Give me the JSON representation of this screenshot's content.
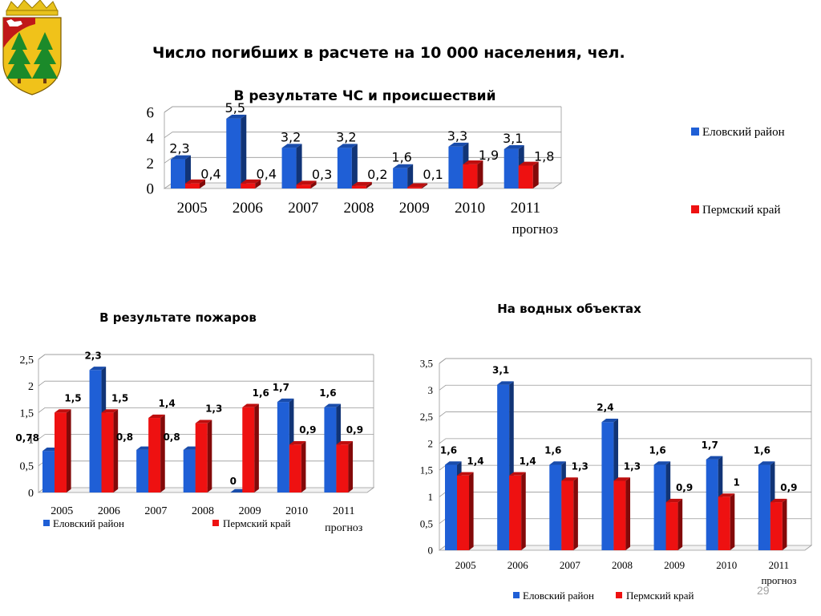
{
  "slide": {
    "title": "Число погибших в расчете на 10 000 населения, чел.",
    "number": "29"
  },
  "colors": {
    "blue": "#1f5fd6",
    "red": "#ee1111"
  },
  "chart_data": [
    {
      "type": "bar",
      "title": "В результате ЧС и происшествий",
      "categories": [
        "2005",
        "2006",
        "2007",
        "2008",
        "2009",
        "2010",
        "2011"
      ],
      "category_sublabels": [
        "",
        "",
        "",
        "",
        "",
        "",
        "прогноз"
      ],
      "series": [
        {
          "name": "Еловский район",
          "values": [
            2.3,
            5.5,
            3.2,
            3.2,
            1.6,
            3.3,
            3.1
          ],
          "labels": [
            "2,3",
            "5,5",
            "3,2",
            "3,2",
            "1,6",
            "3,3",
            "3,1"
          ]
        },
        {
          "name": "Пермский край",
          "values": [
            0.4,
            0.4,
            0.3,
            0.2,
            0.1,
            1.9,
            1.8
          ],
          "labels": [
            "0,4",
            "0,4",
            "0,3",
            "0,2",
            "0,1",
            "1,9",
            "1,8"
          ]
        }
      ],
      "yticks": [
        "0",
        "2",
        "4",
        "6"
      ],
      "ylim": [
        0,
        6
      ],
      "legend": "right"
    },
    {
      "type": "bar",
      "title": "В результате пожаров",
      "categories": [
        "2005",
        "2006",
        "2007",
        "2008",
        "2009",
        "2010",
        "2011"
      ],
      "category_sublabels": [
        "",
        "",
        "",
        "",
        "",
        "",
        "прогноз"
      ],
      "series": [
        {
          "name": "Еловский район",
          "values": [
            0.78,
            2.3,
            0.8,
            0.8,
            0,
            1.7,
            1.6
          ],
          "labels": [
            "0,78",
            "2,3",
            "0,8",
            "0,8",
            "0",
            "1,7",
            "1,6"
          ]
        },
        {
          "name": "Пермский край",
          "values": [
            1.5,
            1.5,
            1.4,
            1.3,
            1.6,
            0.9,
            0.9
          ],
          "labels": [
            "1,5",
            "1,5",
            "1,4",
            "1,3",
            "1,6",
            "0,9",
            "0,9"
          ]
        }
      ],
      "yticks": [
        "0",
        "0,5",
        "1",
        "1,5",
        "2",
        "2,5"
      ],
      "ylim": [
        0,
        2.5
      ],
      "legend": "bottom"
    },
    {
      "type": "bar",
      "title": "На водных объектах",
      "categories": [
        "2005",
        "2006",
        "2007",
        "2008",
        "2009",
        "2010",
        "2011"
      ],
      "category_sublabels": [
        "",
        "",
        "",
        "",
        "",
        "",
        "прогноз"
      ],
      "series": [
        {
          "name": "Еловский район",
          "values": [
            1.6,
            3.1,
            1.6,
            2.4,
            1.6,
            1.7,
            1.6
          ],
          "labels": [
            "1,6",
            "3,1",
            "1,6",
            "2,4",
            "1,6",
            "1,7",
            "1,6"
          ]
        },
        {
          "name": "Пермский край",
          "values": [
            1.4,
            1.4,
            1.3,
            1.3,
            0.9,
            1,
            0.9
          ],
          "labels": [
            "1,4",
            "1,4",
            "1,3",
            "1,3",
            "0,9",
            "1",
            "0,9"
          ]
        }
      ],
      "yticks": [
        "0",
        "0,5",
        "1",
        "1,5",
        "2",
        "2,5",
        "3",
        "3,5"
      ],
      "ylim": [
        0,
        3.5
      ],
      "legend": "bottom"
    }
  ]
}
